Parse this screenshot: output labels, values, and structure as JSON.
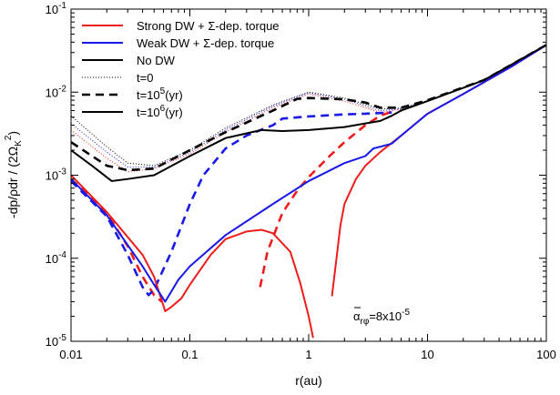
{
  "chart_data": {
    "type": "line",
    "xscale": "log",
    "yscale": "log",
    "xlim": [
      0.01,
      100
    ],
    "ylim": [
      1e-05,
      0.1
    ],
    "xlabel": "r(au)",
    "ylabel": "-dp/ρdr / (2ΩK²)",
    "ylabel_parts": {
      "main": "-dp/ρdr / (2Ω",
      "sub": "K",
      "sup": "2",
      "close": ")"
    },
    "x_ticks": [
      {
        "value": 0.01,
        "label": "0.01"
      },
      {
        "value": 0.1,
        "label": "0.1"
      },
      {
        "value": 1,
        "label": "1"
      },
      {
        "value": 10,
        "label": "10"
      },
      {
        "value": 100,
        "label": "100"
      }
    ],
    "y_ticks": [
      {
        "value": 1e-05,
        "base": "10",
        "exp": "-5"
      },
      {
        "value": 0.0001,
        "base": "10",
        "exp": "-4"
      },
      {
        "value": 0.001,
        "base": "10",
        "exp": "-3"
      },
      {
        "value": 0.01,
        "base": "10",
        "exp": "-2"
      },
      {
        "value": 0.1,
        "base": "10",
        "exp": "-1"
      }
    ],
    "annotation": {
      "main": "α",
      "sub": "rφ",
      "value": "=8x10",
      "sup": "-5"
    },
    "legend": [
      {
        "type": "color",
        "label": "Strong DW + Σ-dep. torque",
        "color": "#ee1c1c",
        "dash": "solid",
        "width": 2
      },
      {
        "type": "color",
        "label": "Weak DW + Σ-dep. torque",
        "color": "#1a1ae6",
        "dash": "solid",
        "width": 2
      },
      {
        "type": "color",
        "label": "No DW",
        "color": "#000000",
        "dash": "solid",
        "width": 2
      },
      {
        "type": "style",
        "label_main": "t=0",
        "label_sup": "",
        "label_rest": "",
        "color": "#000000",
        "dash": "1,2",
        "width": 1
      },
      {
        "type": "style",
        "label_main": "t=10",
        "label_sup": "5",
        "label_rest": "(yr)",
        "color": "#000000",
        "dash": "9,6",
        "width": 2.6
      },
      {
        "type": "style",
        "label_main": "t=10",
        "label_sup": "6",
        "label_rest": "(yr)",
        "color": "#000000",
        "dash": "solid",
        "width": 2
      }
    ],
    "series": [
      {
        "model": "Strong DW",
        "time": "t=0",
        "color": "#ee1c1c",
        "dash": "1,2",
        "width": 1,
        "points": [
          [
            0.01,
            0.0035
          ],
          [
            0.02,
            0.0016
          ],
          [
            0.03,
            0.0011
          ],
          [
            0.05,
            0.0012
          ],
          [
            0.1,
            0.0018
          ],
          [
            0.2,
            0.0033
          ],
          [
            0.5,
            0.0065
          ],
          [
            1,
            0.0095
          ],
          [
            2,
            0.0078
          ],
          [
            4,
            0.0057
          ],
          [
            6,
            0.0062
          ],
          [
            10,
            0.0078
          ],
          [
            30,
            0.014
          ],
          [
            100,
            0.037
          ]
        ]
      },
      {
        "model": "Weak DW",
        "time": "t=0",
        "color": "#1a1ae6",
        "dash": "1,2",
        "width": 1,
        "points": [
          [
            0.01,
            0.0042
          ],
          [
            0.02,
            0.0019
          ],
          [
            0.03,
            0.00125
          ],
          [
            0.05,
            0.00125
          ],
          [
            0.1,
            0.0019
          ],
          [
            0.2,
            0.0035
          ],
          [
            0.5,
            0.0068
          ],
          [
            1,
            0.0098
          ],
          [
            2,
            0.0082
          ],
          [
            4,
            0.006
          ],
          [
            6,
            0.0063
          ],
          [
            10,
            0.0078
          ],
          [
            30,
            0.014
          ],
          [
            100,
            0.037
          ]
        ]
      },
      {
        "model": "No DW",
        "time": "t=0",
        "color": "#000000",
        "dash": "1,2",
        "width": 1,
        "points": [
          [
            0.01,
            0.0052
          ],
          [
            0.02,
            0.0022
          ],
          [
            0.03,
            0.0014
          ],
          [
            0.05,
            0.0013
          ],
          [
            0.1,
            0.002
          ],
          [
            0.2,
            0.0037
          ],
          [
            0.5,
            0.007
          ],
          [
            1,
            0.01
          ],
          [
            2,
            0.0085
          ],
          [
            4,
            0.0063
          ],
          [
            6,
            0.0064
          ],
          [
            10,
            0.0079
          ],
          [
            30,
            0.014
          ],
          [
            100,
            0.037
          ]
        ]
      },
      {
        "model": "Strong DW",
        "time": "t=1e5 yr",
        "color": "#ee1c1c",
        "dash": "9,6",
        "width": 2.6,
        "points": [
          [
            0.01,
            0.0009
          ],
          [
            0.02,
            0.00035
          ],
          [
            0.03,
            0.00014
          ],
          [
            0.04,
            6e-05
          ],
          [
            0.05,
            3.6e-05
          ],
          [
            0.058,
            3e-05
          ]
        ]
      },
      {
        "model": "Strong DW",
        "time": "t=1e5 yr",
        "color": "#ee1c1c",
        "dash": "9,6",
        "width": 2.6,
        "points": [
          [
            0.39,
            4.5e-05
          ],
          [
            0.45,
            0.00012
          ],
          [
            0.6,
            0.00035
          ],
          [
            0.8,
            0.00065
          ],
          [
            1,
            0.00095
          ],
          [
            1.5,
            0.0017
          ],
          [
            2,
            0.0025
          ],
          [
            3,
            0.004
          ],
          [
            4,
            0.0052
          ],
          [
            5,
            0.0058
          ]
        ]
      },
      {
        "model": "Weak DW",
        "time": "t=1e5 yr",
        "color": "#1a1ae6",
        "dash": "9,6",
        "width": 2.6,
        "points": [
          [
            0.01,
            0.00085
          ],
          [
            0.02,
            0.00032
          ],
          [
            0.03,
            0.00011
          ],
          [
            0.04,
            4.5e-05
          ],
          [
            0.045,
            3.6e-05
          ],
          [
            0.05,
            4.2e-05
          ],
          [
            0.07,
            0.00012
          ],
          [
            0.1,
            0.00045
          ],
          [
            0.13,
            0.001
          ],
          [
            0.2,
            0.0021
          ],
          [
            0.3,
            0.003
          ],
          [
            0.5,
            0.004
          ],
          [
            0.6,
            0.0048
          ],
          [
            1,
            0.0051
          ],
          [
            2,
            0.0054
          ],
          [
            3,
            0.0055
          ],
          [
            4,
            0.0056
          ],
          [
            5,
            0.0057
          ]
        ]
      },
      {
        "model": "No DW",
        "time": "t=1e5 yr",
        "color": "#000000",
        "dash": "9,6",
        "width": 2.6,
        "points": [
          [
            0.01,
            0.0025
          ],
          [
            0.02,
            0.0013
          ],
          [
            0.03,
            0.00115
          ],
          [
            0.05,
            0.0012
          ],
          [
            0.1,
            0.002
          ],
          [
            0.2,
            0.0033
          ],
          [
            0.5,
            0.006
          ],
          [
            0.8,
            0.0083
          ],
          [
            1,
            0.0085
          ],
          [
            2,
            0.0082
          ],
          [
            3,
            0.0075
          ],
          [
            4,
            0.0065
          ],
          [
            6,
            0.0065
          ],
          [
            10,
            0.008
          ],
          [
            30,
            0.014
          ],
          [
            100,
            0.037
          ]
        ]
      },
      {
        "model": "Strong DW",
        "time": "t=1e6 yr",
        "color": "#ee1c1c",
        "dash": "solid",
        "width": 2,
        "points": [
          [
            0.01,
            0.001
          ],
          [
            0.02,
            0.00036
          ],
          [
            0.04,
            0.00011
          ],
          [
            0.05,
            6e-05
          ],
          [
            0.062,
            2.3e-05
          ],
          [
            0.07,
            2.6e-05
          ],
          [
            0.085,
            3.3e-05
          ],
          [
            0.1,
            4.8e-05
          ],
          [
            0.15,
            0.00011
          ],
          [
            0.2,
            0.00017
          ],
          [
            0.3,
            0.00021
          ],
          [
            0.4,
            0.00022
          ],
          [
            0.5,
            0.0002
          ],
          [
            0.7,
            0.00012
          ],
          [
            0.85,
            5e-05
          ],
          [
            1,
            2e-05
          ],
          [
            1.09,
            1.1e-05
          ]
        ]
      },
      {
        "model": "Strong DW",
        "time": "t=1e6 yr",
        "color": "#ee1c1c",
        "dash": "solid",
        "width": 2,
        "points": [
          [
            1.57,
            3.5e-05
          ],
          [
            1.7,
            9e-05
          ],
          [
            1.85,
            0.00025
          ],
          [
            2,
            0.00045
          ],
          [
            2.5,
            0.0009
          ],
          [
            3,
            0.0013
          ],
          [
            4,
            0.0019
          ],
          [
            6,
            0.003
          ],
          [
            10,
            0.0055
          ],
          [
            20,
            0.0095
          ],
          [
            50,
            0.02
          ],
          [
            100,
            0.037
          ]
        ]
      },
      {
        "model": "Weak DW",
        "time": "t=1e6 yr",
        "color": "#1a1ae6",
        "dash": "solid",
        "width": 2,
        "points": [
          [
            0.01,
            0.0009
          ],
          [
            0.02,
            0.00033
          ],
          [
            0.04,
            8e-05
          ],
          [
            0.05,
            4.8e-05
          ],
          [
            0.062,
            3e-05
          ],
          [
            0.08,
            5.5e-05
          ],
          [
            0.1,
            8e-05
          ],
          [
            0.2,
            0.00019
          ],
          [
            0.5,
            0.00045
          ],
          [
            1,
            0.00085
          ],
          [
            2,
            0.0014
          ],
          [
            3,
            0.0017
          ],
          [
            3.5,
            0.0021
          ],
          [
            4,
            0.0022
          ],
          [
            5,
            0.0024
          ],
          [
            6,
            0.003
          ],
          [
            10,
            0.0055
          ],
          [
            20,
            0.0095
          ],
          [
            50,
            0.02
          ],
          [
            100,
            0.037
          ]
        ]
      },
      {
        "model": "No DW",
        "time": "t=1e6 yr",
        "color": "#000000",
        "dash": "solid",
        "width": 2,
        "points": [
          [
            0.01,
            0.002
          ],
          [
            0.015,
            0.0013
          ],
          [
            0.022,
            0.00085
          ],
          [
            0.03,
            0.0009
          ],
          [
            0.05,
            0.001
          ],
          [
            0.1,
            0.0017
          ],
          [
            0.2,
            0.0028
          ],
          [
            0.4,
            0.0035
          ],
          [
            0.6,
            0.0034
          ],
          [
            1,
            0.0035
          ],
          [
            2,
            0.0038
          ],
          [
            3,
            0.0042
          ],
          [
            4,
            0.0045
          ],
          [
            5,
            0.0052
          ],
          [
            6,
            0.006
          ],
          [
            10,
            0.0078
          ],
          [
            30,
            0.014
          ],
          [
            100,
            0.037
          ]
        ]
      }
    ]
  }
}
